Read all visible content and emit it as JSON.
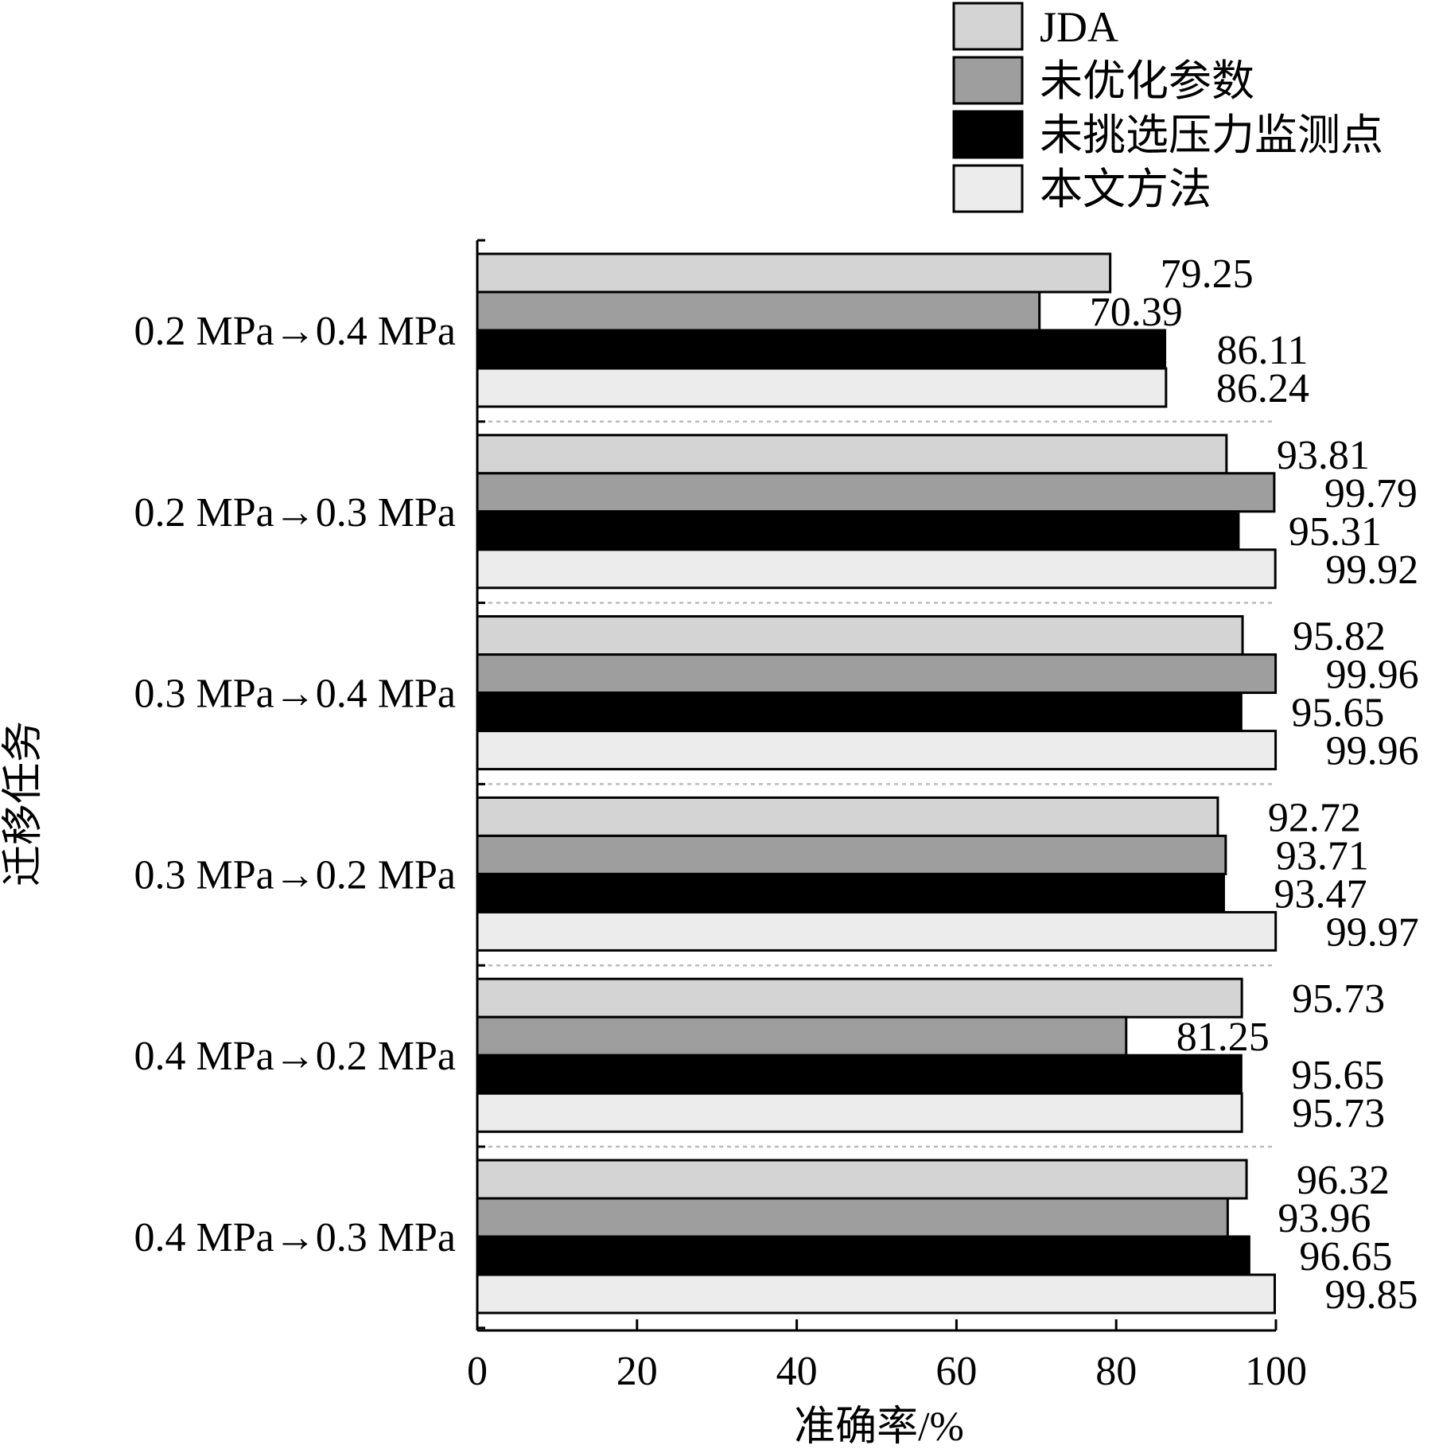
{
  "chart_data": {
    "type": "bar",
    "orientation": "horizontal",
    "categories": [
      "0.2 MPa→0.4 MPa",
      "0.2 MPa→0.3 MPa",
      "0.3 MPa→0.4 MPa",
      "0.3 MPa→0.2 MPa",
      "0.4 MPa→0.2 MPa",
      "0.4 MPa→0.3 MPa"
    ],
    "series": [
      {
        "name": "JDA",
        "color": "#d4d4d4",
        "values": [
          79.25,
          93.81,
          95.82,
          92.72,
          95.73,
          96.32
        ]
      },
      {
        "name": "未优化参数",
        "color": "#9e9e9e",
        "values": [
          70.39,
          99.79,
          99.96,
          93.71,
          81.25,
          93.96
        ]
      },
      {
        "name": "未挑选压力监测点",
        "color": "#000000",
        "values": [
          86.11,
          95.31,
          95.65,
          93.47,
          95.65,
          96.65
        ]
      },
      {
        "name": "本文方法",
        "color": "#ececec",
        "values": [
          86.24,
          99.92,
          99.96,
          99.97,
          95.73,
          99.85
        ]
      }
    ],
    "data_labels": [
      [
        "79.25",
        "70.39",
        "86.11",
        "86.24"
      ],
      [
        "93.81",
        "99.79",
        "95.31",
        "99.92"
      ],
      [
        "95.82",
        "99.96",
        "95.65",
        "99.96"
      ],
      [
        "92.72",
        "93.71",
        "93.47",
        "99.97"
      ],
      [
        "95.73",
        "81.25",
        "95.65",
        "95.73"
      ],
      [
        "96.32",
        "93.96",
        "96.65",
        "99.85"
      ]
    ],
    "xlabel": "准确率/%",
    "ylabel": "迁移任务",
    "xlim": [
      0,
      100
    ],
    "xticks": [
      0,
      20,
      40,
      60,
      80,
      100
    ],
    "xtick_labels": [
      "0",
      "20",
      "40",
      "60",
      "80",
      "100"
    ],
    "legend_position": "top-right",
    "grid": false,
    "group_separators": "dotted"
  }
}
